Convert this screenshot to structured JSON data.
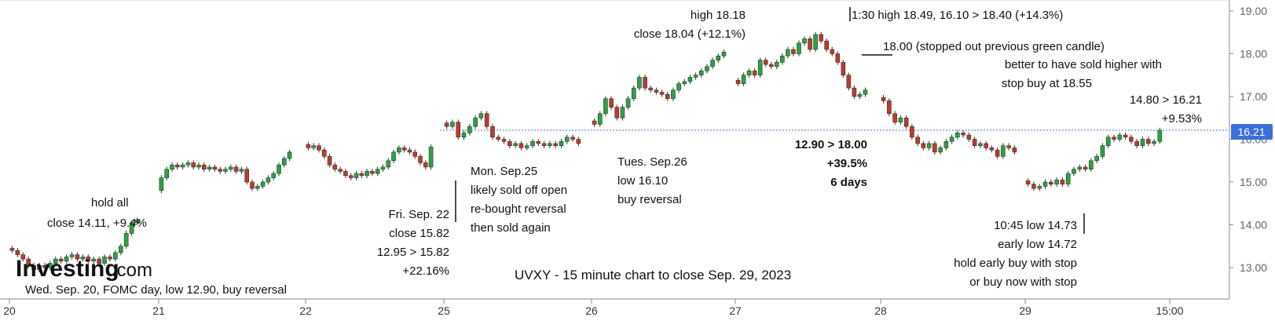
{
  "chart_data": {
    "type": "candlestick",
    "title": "UVXY - 15 minute chart to close Sep. 29, 2023",
    "ylim": [
      12.7,
      19.1
    ],
    "y_ticks": [
      "13.00",
      "14.00",
      "15.00",
      "16.00",
      "17.00",
      "18.00",
      "19.00"
    ],
    "x_ticks": [
      "20",
      "21",
      "22",
      "25",
      "26",
      "27",
      "28",
      "29",
      "15:00"
    ],
    "last_price": "16.21",
    "reference_line": 16.21,
    "colors": {
      "up": "#26a641",
      "down": "#c0392b",
      "price_tag": "#3d6fd8",
      "ref_line": "#4a6fd8"
    },
    "series": [
      {
        "day": "Sep 20",
        "closes": [
          13.4,
          13.3,
          13.2,
          13.05,
          12.95,
          13.05,
          13.0,
          13.1,
          13.2,
          13.15,
          13.25,
          13.3,
          13.2,
          13.25,
          13.15,
          13.2,
          13.1,
          13.25,
          13.2,
          13.35,
          13.5,
          13.8,
          14.05,
          14.11
        ]
      },
      {
        "day": "Sep 21",
        "closes": [
          15.1,
          15.3,
          15.4,
          15.35,
          15.4,
          15.45,
          15.35,
          15.4,
          15.3,
          15.35,
          15.3,
          15.25,
          15.3,
          15.35,
          15.25,
          15.3,
          15.0,
          14.85,
          14.9,
          15.0,
          15.1,
          15.2,
          15.4,
          15.55,
          15.7
        ]
      },
      {
        "day": "Sep 22",
        "closes": [
          15.8,
          15.85,
          15.75,
          15.6,
          15.4,
          15.3,
          15.25,
          15.15,
          15.1,
          15.2,
          15.15,
          15.25,
          15.2,
          15.3,
          15.35,
          15.5,
          15.7,
          15.8,
          15.75,
          15.7,
          15.6,
          15.45,
          15.35,
          15.82
        ]
      },
      {
        "day": "Sep 25",
        "closes": [
          16.3,
          16.4,
          16.05,
          16.15,
          16.3,
          16.5,
          16.6,
          16.3,
          16.05,
          16.0,
          15.95,
          15.85,
          15.9,
          15.8,
          15.85,
          15.95,
          15.9,
          15.85,
          15.9,
          15.85,
          15.95,
          16.05,
          16.0,
          15.9
        ]
      },
      {
        "day": "Sep 26",
        "closes": [
          16.35,
          16.6,
          16.95,
          16.75,
          16.5,
          16.75,
          16.95,
          17.2,
          17.45,
          17.2,
          17.15,
          17.1,
          17.05,
          16.95,
          17.15,
          17.3,
          17.35,
          17.45,
          17.5,
          17.6,
          17.7,
          17.85,
          17.95,
          18.04
        ]
      },
      {
        "day": "Sep 27",
        "closes": [
          17.3,
          17.5,
          17.6,
          17.5,
          17.85,
          17.75,
          17.7,
          17.8,
          17.95,
          18.1,
          18.0,
          18.25,
          18.35,
          18.1,
          18.45,
          18.3,
          18.1,
          18.0,
          17.8,
          17.5,
          17.2,
          17.0,
          17.05,
          17.15
        ]
      },
      {
        "day": "Sep 28",
        "closes": [
          16.9,
          16.6,
          16.4,
          16.5,
          16.3,
          16.05,
          15.9,
          15.8,
          15.9,
          15.7,
          15.8,
          15.95,
          16.05,
          16.15,
          16.1,
          16.0,
          15.85,
          15.9,
          15.8,
          15.75,
          15.6,
          15.85,
          15.8,
          15.7
        ]
      },
      {
        "day": "Sep 29",
        "closes": [
          14.95,
          14.85,
          14.9,
          15.0,
          14.95,
          15.05,
          14.95,
          15.2,
          15.3,
          15.35,
          15.3,
          15.5,
          15.6,
          15.85,
          16.05,
          16.0,
          16.1,
          16.05,
          15.95,
          15.85,
          16.0,
          15.9,
          15.95,
          16.21
        ]
      }
    ]
  },
  "annotations": {
    "wed": "Wed. Sep. 20, FOMC day, low 12.90, buy reversal",
    "hold1": "hold all",
    "hold2": "close 14.11, +9.4%",
    "fri1": "Fri. Sep. 22",
    "fri2": "close 15.82",
    "fri3": "12.95 > 15.82",
    "fri4": "+22.16%",
    "mon1": "Mon. Sep.25",
    "mon2": "likely sold off open",
    "mon3": "re-bought reversal",
    "mon4": "then sold again",
    "tue1": "Tues. Sep.26",
    "tue2": "low 16.10",
    "tue3": "buy reversal",
    "high1": "high 18.18",
    "high2": "close 18.04 (+12.1%)",
    "gain1": "12.90 > 18.00",
    "gain2": "+39.5%",
    "gain3": "6 days",
    "top1": "1:30 high 18.49, 16.10 > 18.40 (+14.3%)",
    "stop1": "18.00 (stopped out previous green candle)",
    "stop2": "better to have sold higher with",
    "stop3": "stop buy at 18.55",
    "right1": "14.80 > 16.21",
    "right2": "+9.53%",
    "low1": "10:45 low 14.73",
    "low2": "early low 14.72",
    "low3": "hold early buy with stop",
    "low4": "or buy now with stop"
  },
  "logo": {
    "brand": "Investing",
    "suffix": ".com"
  }
}
